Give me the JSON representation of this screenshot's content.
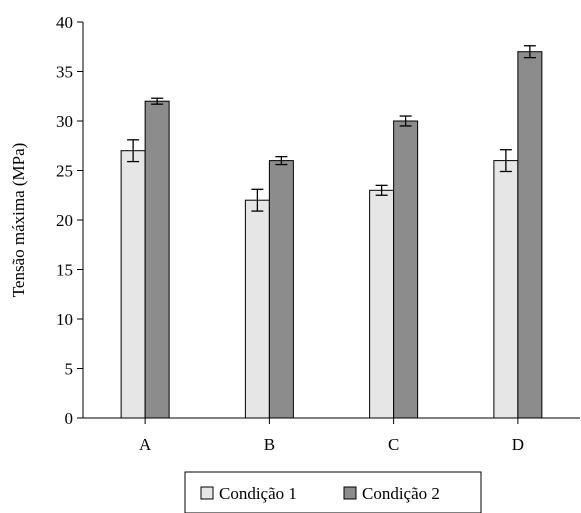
{
  "chart_data": {
    "type": "bar",
    "title": "",
    "xlabel": "",
    "ylabel": "Tensão máxima (MPa)",
    "ylim": [
      0,
      40
    ],
    "yticks": [
      0,
      5,
      10,
      15,
      20,
      25,
      30,
      35,
      40
    ],
    "categories": [
      "A",
      "B",
      "C",
      "D"
    ],
    "series": [
      {
        "name": "Condição 1",
        "color": "#e6e6e6",
        "values": [
          27,
          22,
          23,
          26
        ],
        "errors": [
          1.1,
          1.1,
          0.5,
          1.1
        ]
      },
      {
        "name": "Condição 2",
        "color": "#8c8c8c",
        "values": [
          32,
          26,
          30,
          37
        ],
        "errors": [
          0.3,
          0.4,
          0.5,
          0.6
        ]
      }
    ],
    "grid": false,
    "legend_position": "bottom"
  }
}
